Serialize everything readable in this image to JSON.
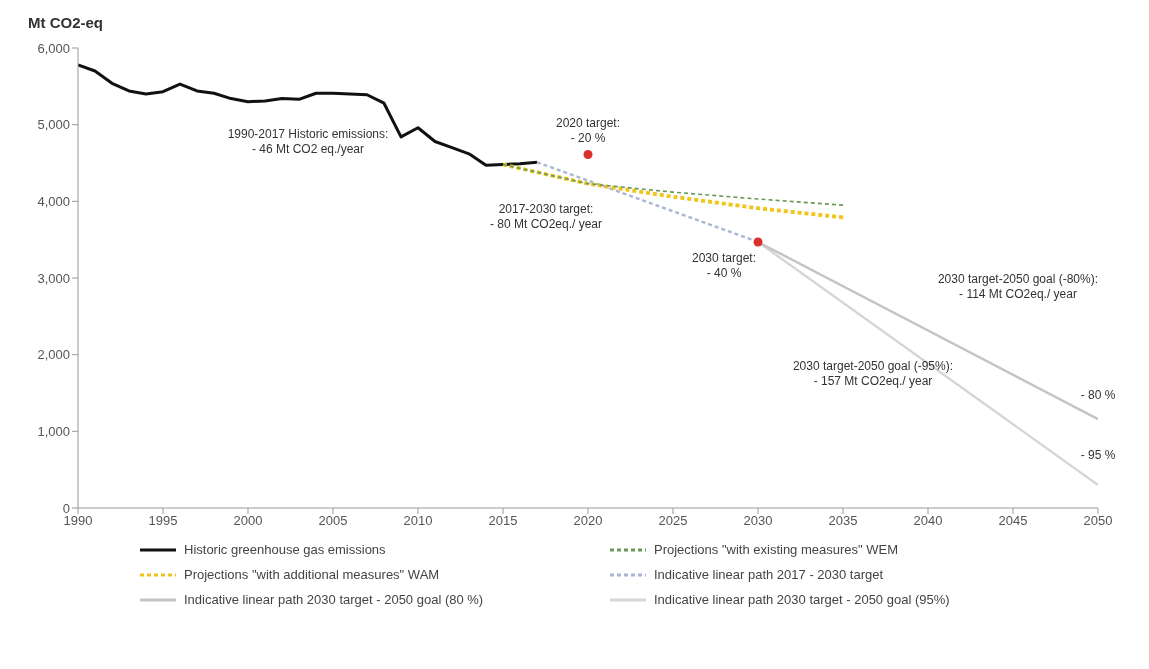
{
  "chart_data": {
    "type": "line",
    "ylabel": "Mt CO2-eq",
    "xlim": [
      1990,
      2050
    ],
    "xticks": [
      1990,
      1995,
      2000,
      2005,
      2010,
      2015,
      2020,
      2025,
      2030,
      2035,
      2040,
      2045,
      2050
    ],
    "ylim": [
      0,
      6000
    ],
    "yticks": [
      {
        "value": 0,
        "label": "0"
      },
      {
        "value": 1000,
        "label": "1,000"
      },
      {
        "value": 2000,
        "label": "2,000"
      },
      {
        "value": 3000,
        "label": "3,000"
      },
      {
        "value": 4000,
        "label": "4,000"
      },
      {
        "value": 5000,
        "label": "5,000"
      },
      {
        "value": 6000,
        "label": "6,000"
      }
    ],
    "grid": false,
    "legend": "bottom",
    "marker": "none",
    "series": [
      {
        "name": "Historic greenhouse gas emissions",
        "color": "#111111",
        "line_style": "solid",
        "x": [
          1990,
          1991,
          1992,
          1993,
          1994,
          1995,
          1996,
          1997,
          1998,
          1999,
          2000,
          2001,
          2002,
          2003,
          2004,
          2005,
          2006,
          2007,
          2008,
          2009,
          2010,
          2011,
          2012,
          2013,
          2014,
          2015,
          2016,
          2017
        ],
        "values": [
          5780,
          5700,
          5540,
          5440,
          5400,
          5430,
          5530,
          5440,
          5410,
          5340,
          5300,
          5310,
          5340,
          5330,
          5410,
          5410,
          5400,
          5390,
          5280,
          4840,
          4960,
          4780,
          4700,
          4620,
          4470,
          4480,
          4490,
          4510
        ]
      },
      {
        "name": "Projections \"with existing measures\" WEM",
        "color": "#6a9a55",
        "line_style": "dashed",
        "x": [
          2015,
          2020,
          2025,
          2030,
          2035
        ],
        "values": [
          4480,
          4230,
          4120,
          4030,
          3950
        ]
      },
      {
        "name": "Projections \"with additional measures\" WAM",
        "color": "#f0c419",
        "line_style": "dashed",
        "x": [
          2015,
          2020,
          2025,
          2030,
          2035
        ],
        "values": [
          4480,
          4230,
          4060,
          3910,
          3790
        ]
      },
      {
        "name": "Indicative linear path 2017 - 2030 target",
        "color": "#a9b6d4",
        "line_style": "dashed",
        "x": [
          2017,
          2030
        ],
        "values": [
          4510,
          3470
        ]
      },
      {
        "name": "Indicative linear path 2030 target - 2050 goal (80 %)",
        "color": "#c4c4c4",
        "line_style": "solid",
        "x": [
          2030,
          2050
        ],
        "values": [
          3470,
          1160
        ]
      },
      {
        "name": "Indicative linear path 2030 target - 2050 goal (95%)",
        "color": "#d6d6d6",
        "line_style": "solid",
        "x": [
          2030,
          2050
        ],
        "values": [
          3470,
          300
        ]
      },
      {
        "type": "scatter",
        "marker": "circle",
        "color": "#d9302c",
        "x": [
          2020,
          2030
        ],
        "values": [
          4610,
          3470
        ]
      }
    ],
    "annotations": [
      {
        "text": "1990-2017 Historic emissions:\n- 46 Mt CO2 eq./year",
        "x": 2004,
        "y": 5410
      },
      {
        "text": "2020 target:\n- 20 %",
        "x": 2020,
        "y": 4610
      },
      {
        "text": "2017-2030 target:\n- 80 Mt CO2eq./ year",
        "x": 2020,
        "y": 4270
      },
      {
        "text": "2030 target:\n- 40 %",
        "x": 2030,
        "y": 3470
      },
      {
        "text": "2030 target-2050 goal (-80%):\n- 114 Mt CO2eq./ year",
        "x": 2040,
        "y": 2315
      },
      {
        "text": "2030 target-2050 goal (-95%):\n- 157 Mt CO2eq./ year",
        "x": 2040,
        "y": 1885
      },
      {
        "text": "- 80 %",
        "x": 2050,
        "y": 1160
      },
      {
        "text": "- 95 %",
        "x": 2050,
        "y": 300
      }
    ]
  }
}
